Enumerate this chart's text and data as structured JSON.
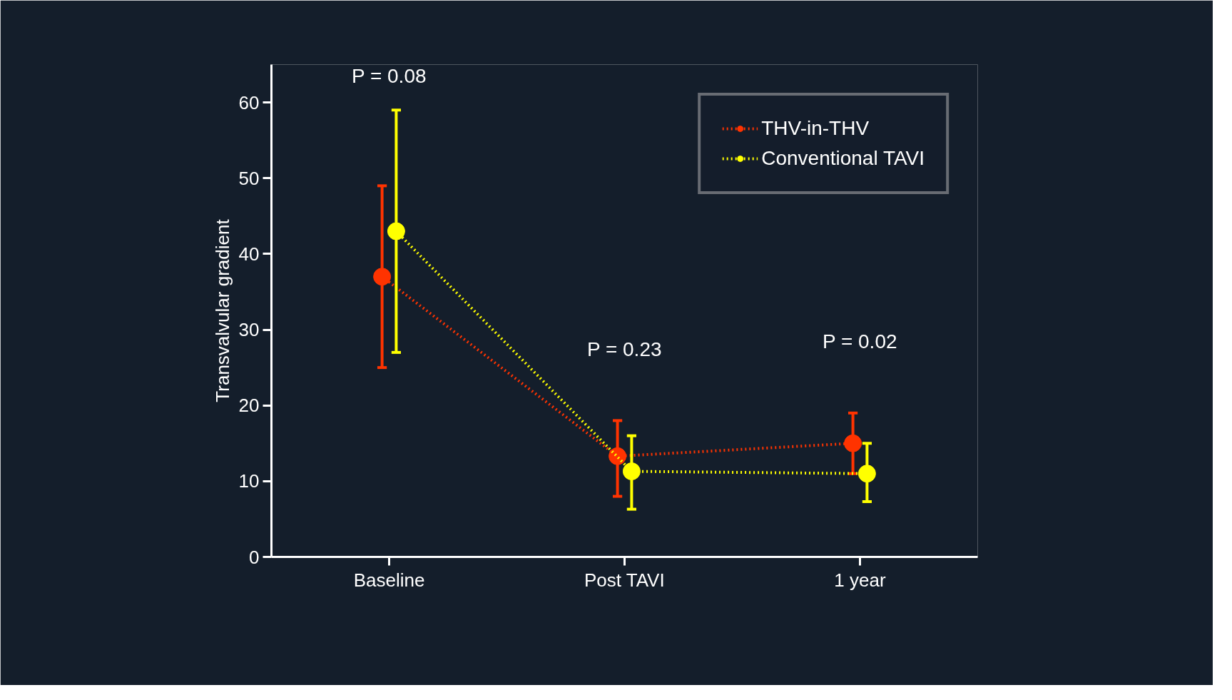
{
  "chart_data": {
    "type": "line",
    "ylabel": "Transvalvular gradient",
    "categories": [
      "Baseline",
      "Post TAVI",
      "1 year"
    ],
    "series": [
      {
        "name": "THV-in-THV",
        "color": "#ff3300",
        "values": [
          37,
          13.3,
          15
        ],
        "errors": [
          [
            25,
            49
          ],
          [
            8,
            18
          ],
          [
            11,
            19
          ]
        ]
      },
      {
        "name": "Conventional TAVI",
        "color": "#ffff00",
        "values": [
          43,
          11.3,
          11
        ],
        "errors": [
          [
            27,
            59
          ],
          [
            6.3,
            16
          ],
          [
            7.3,
            15
          ]
        ]
      }
    ],
    "ylim": [
      0,
      65
    ],
    "yticks": [
      0,
      10,
      20,
      30,
      40,
      50,
      60
    ],
    "grid": false,
    "legend": "top right",
    "marker": "circle",
    "line_style": "dotted",
    "annotations": [
      "P = 0.08",
      "P = 0.23",
      "P = 0.02"
    ]
  }
}
